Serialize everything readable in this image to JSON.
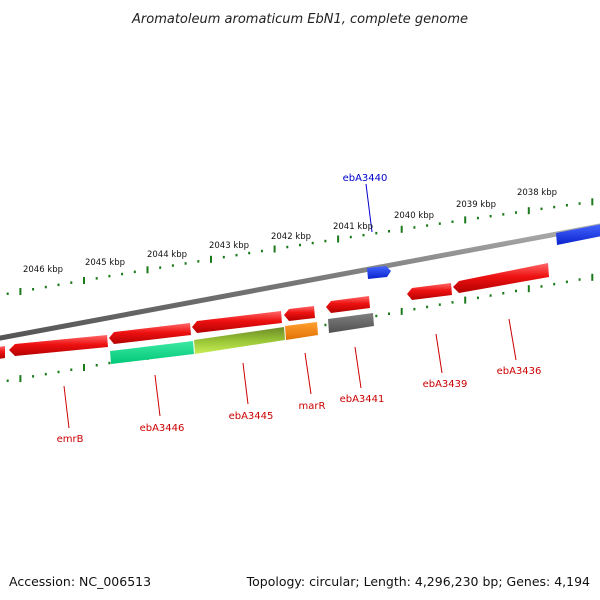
{
  "title": "Aromatoleum aromaticum EbN1, complete genome",
  "footer": {
    "accession": "Accession: NC_006513",
    "topology": "Topology: circular; Length: 4,296,230 bp; Genes: 4,194"
  },
  "colors": {
    "backbone": "#7f7f7f",
    "tick": "#1a7a1a",
    "forward_gene": "#ee1111",
    "reverse_gene": "#ee1111",
    "highlight_blue": "#1133ee",
    "label_red": "#cc0000",
    "label_blue": "#0000cc"
  },
  "ticks": [
    {
      "label": "2046 kbp"
    },
    {
      "label": "2045 kbp"
    },
    {
      "label": "2044 kbp"
    },
    {
      "label": "2043 kbp"
    },
    {
      "label": "2042 kbp"
    },
    {
      "label": "2041 kbp"
    },
    {
      "label": "2040 kbp"
    },
    {
      "label": "2039 kbp"
    },
    {
      "label": "2038 kbp"
    }
  ],
  "genes": [
    {
      "label": "emrB",
      "color": "#ee1111"
    },
    {
      "label": "ebA3446",
      "color": "#22dd99"
    },
    {
      "label": "ebA3445",
      "color": "#99cc33"
    },
    {
      "label": "marR",
      "color": "#ff8800"
    },
    {
      "label": "ebA3441",
      "color": "#666666"
    },
    {
      "label": "ebA3439",
      "color": "#ee1111"
    },
    {
      "label": "ebA3436",
      "color": "#ee1111"
    },
    {
      "label": "ebA3440",
      "color": "#1133ee"
    }
  ]
}
